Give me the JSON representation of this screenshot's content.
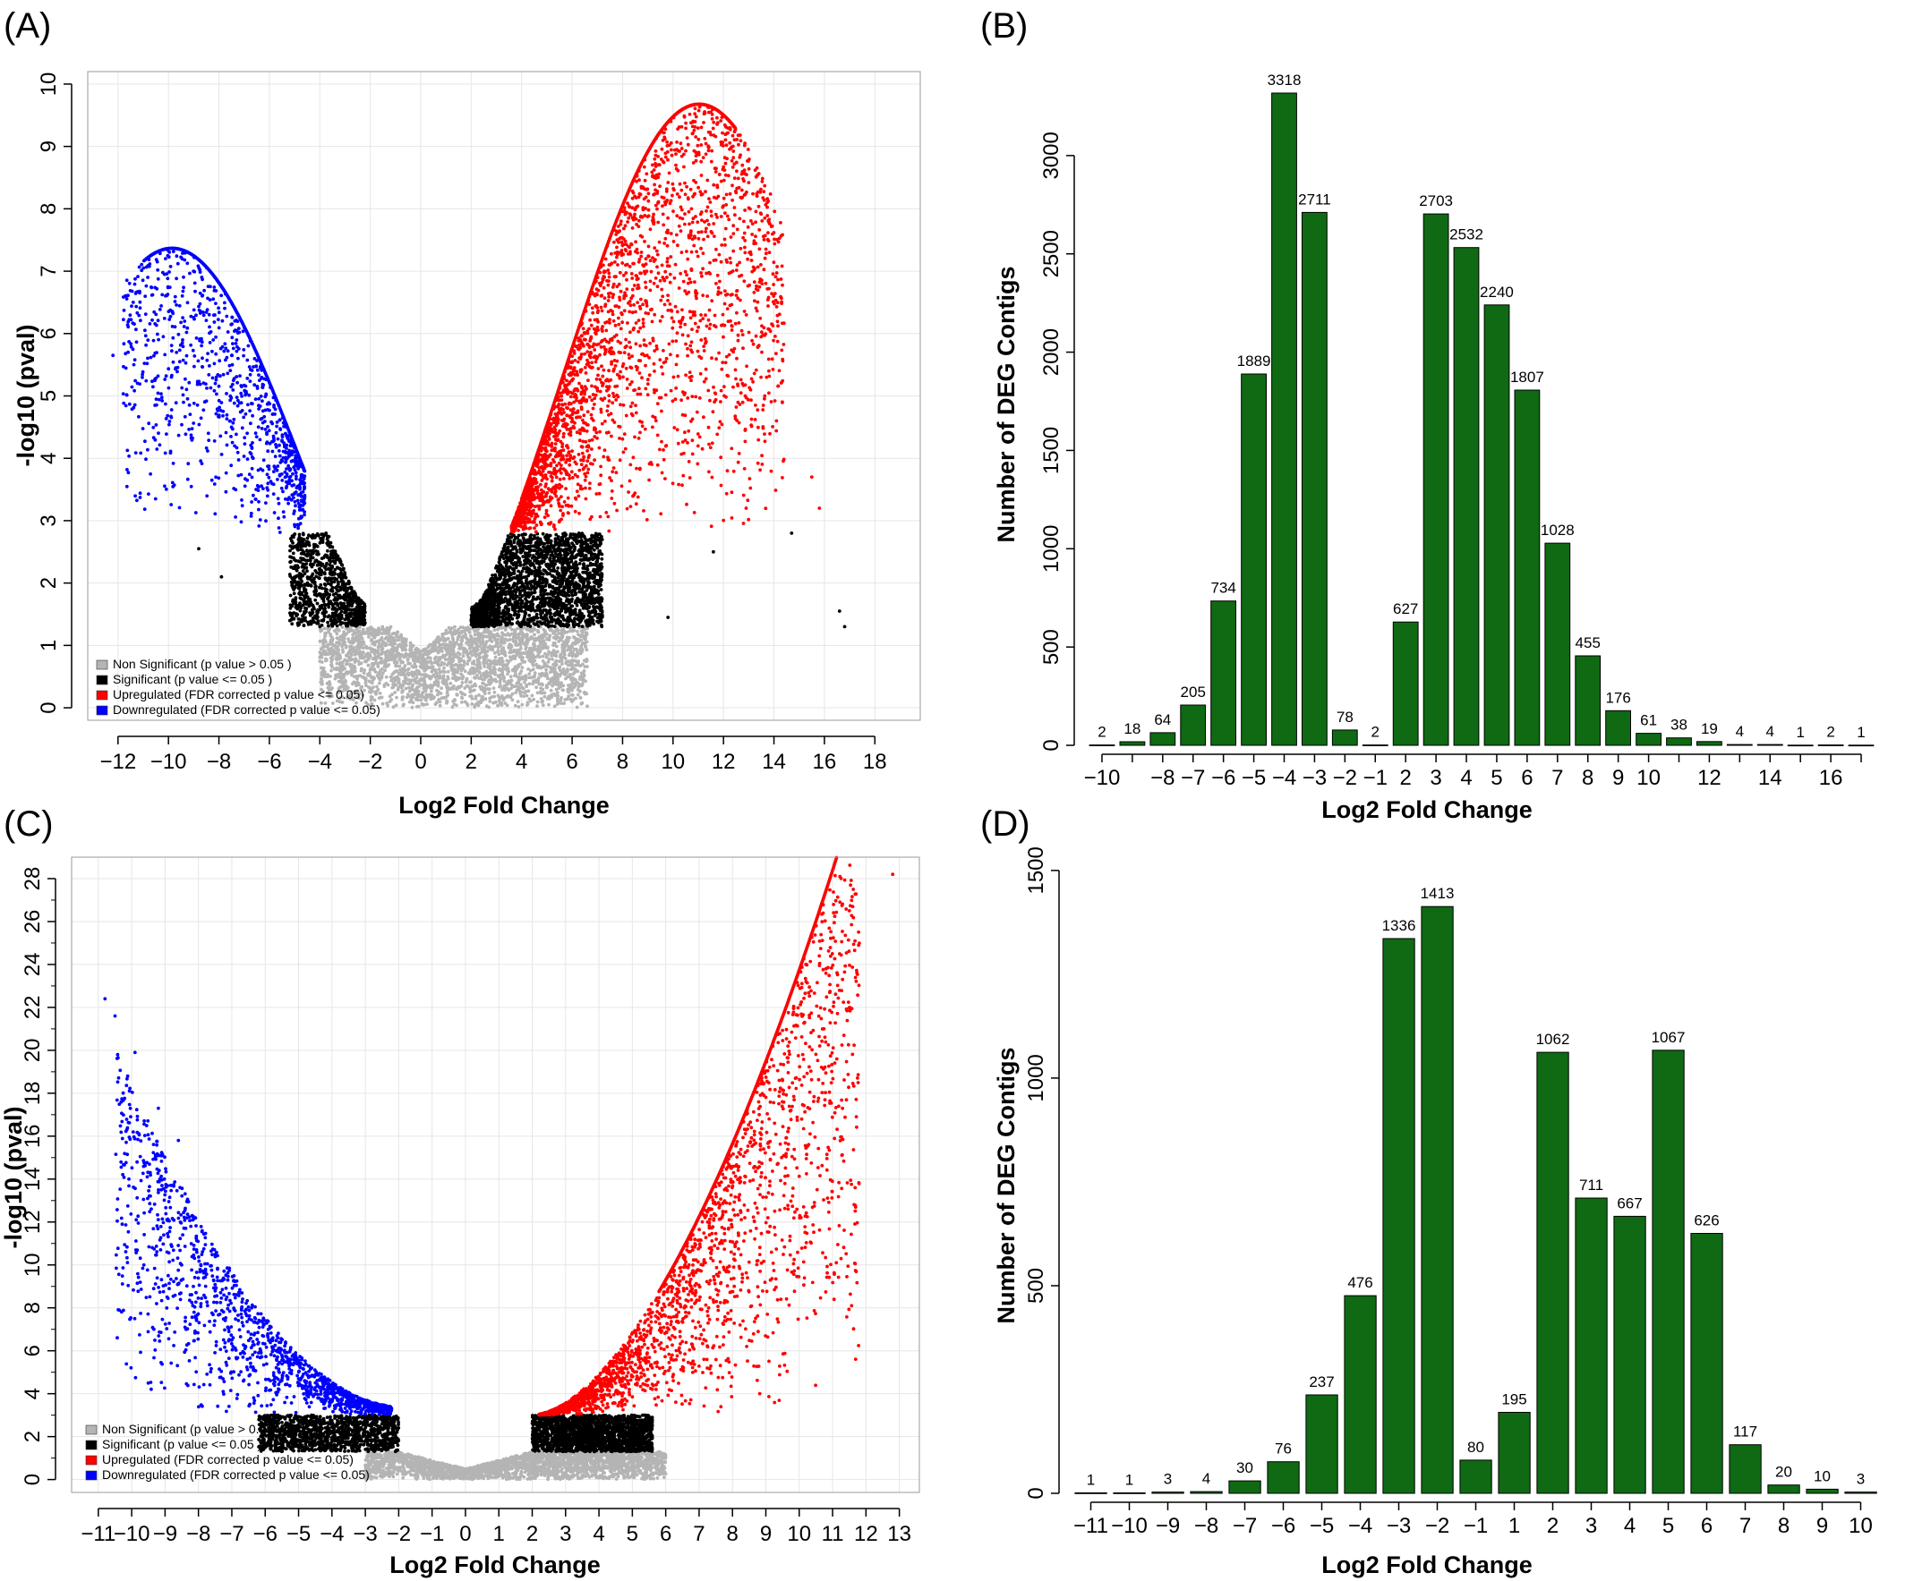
{
  "colors": {
    "non_significant": "#b4b4b4",
    "significant": "#000000",
    "upregulated": "#ff0000",
    "downregulated": "#0000ff",
    "bar_fill": "#0f6a13",
    "bar_stroke": "#000000",
    "grid": "#e6e6e6"
  },
  "chart_data": [
    {
      "panel": "(A)",
      "type": "scatter",
      "title": "",
      "xlabel": "Log2 Fold Change",
      "ylabel": "-log10 (pval)",
      "xlim": [
        -13.2,
        19.8
      ],
      "ylim": [
        -0.2,
        10.2
      ],
      "xticks": [
        -12,
        -10,
        -8,
        -6,
        -4,
        -2,
        0,
        2,
        4,
        6,
        8,
        10,
        12,
        14,
        16,
        18
      ],
      "yticks": [
        0,
        1,
        2,
        3,
        4,
        5,
        6,
        7,
        8,
        9,
        10
      ],
      "grid": true,
      "legend_position": "bottom-left",
      "thresholds": {
        "significant": 1.3,
        "fdr": 2.8
      },
      "series": [
        {
          "name": "Non Significant (p value > 0.05 )",
          "color_key": "non_significant",
          "x_range": [
            -4,
            6.6
          ],
          "y_range": [
            0,
            1.3
          ]
        },
        {
          "name": "Significant (p value <= 0.05 )",
          "color_key": "significant",
          "x_range": [
            -5.2,
            7.2
          ],
          "y_range": [
            1.3,
            2.8
          ]
        },
        {
          "name": "Upregulated (FDR corrected p value <= 0.05)",
          "color_key": "upregulated",
          "x_range": [
            3.5,
            14.6
          ],
          "y_range": [
            2.8,
            9.7
          ],
          "peak": [
            11,
            9.7
          ]
        },
        {
          "name": "Downregulated (FDR corrected p value <= 0.05)",
          "color_key": "downregulated",
          "x_range": [
            -12,
            -4.5
          ],
          "y_range": [
            2.8,
            7.4
          ],
          "peak": [
            -9.8,
            7.4
          ]
        }
      ]
    },
    {
      "panel": "(B)",
      "type": "bar",
      "title": "",
      "xlabel": "Log2 Fold Change",
      "ylabel": "Number of DEG Contigs",
      "ylim": [
        0,
        3450
      ],
      "yticks": [
        0,
        500,
        1000,
        1500,
        2000,
        2500,
        3000
      ],
      "categories": [
        -10,
        -9,
        -8,
        -7,
        -6,
        -5,
        -4,
        -3,
        -2,
        -1,
        2,
        3,
        4,
        5,
        6,
        7,
        8,
        9,
        10,
        11,
        12,
        13,
        14,
        15,
        16,
        17
      ],
      "tick_labels": [
        "-10",
        "",
        "-8",
        "-7",
        "-6",
        "-5",
        "-4",
        "-3",
        "-2",
        "-1",
        "2",
        "3",
        "4",
        "5",
        "6",
        "7",
        "8",
        "9",
        "10",
        "",
        "12",
        "",
        "14",
        "",
        "16",
        ""
      ],
      "values": [
        2,
        18,
        64,
        205,
        734,
        1889,
        3318,
        2711,
        78,
        2,
        627,
        2703,
        2532,
        2240,
        1807,
        1028,
        455,
        176,
        61,
        38,
        19,
        4,
        4,
        1,
        2,
        1
      ]
    },
    {
      "panel": "(C)",
      "type": "scatter",
      "title": "",
      "xlabel": "Log2 Fold Change",
      "ylabel": "-log10 (pval)",
      "xlim": [
        -11.8,
        13.6
      ],
      "ylim": [
        -0.6,
        29
      ],
      "xticks": [
        -11,
        -10,
        -9,
        -8,
        -7,
        -6,
        -5,
        -4,
        -3,
        -2,
        -1,
        0,
        1,
        2,
        3,
        4,
        5,
        6,
        7,
        8,
        9,
        10,
        11,
        12,
        13
      ],
      "yticks": [
        0,
        2,
        4,
        6,
        8,
        10,
        12,
        14,
        16,
        18,
        20,
        22,
        24,
        26,
        28
      ],
      "grid": true,
      "legend_position": "bottom-left",
      "thresholds": {
        "significant": 1.3,
        "fdr": 3
      },
      "series": [
        {
          "name": "Non Significant (p value > 0.05 )",
          "color_key": "non_significant",
          "x_range": [
            -3,
            6
          ],
          "y_range": [
            0,
            1.3
          ]
        },
        {
          "name": "Significant (p value <= 0.05 )",
          "color_key": "significant",
          "x_range": [
            -6.2,
            5.6
          ],
          "y_range": [
            1.3,
            3
          ]
        },
        {
          "name": "Upregulated (FDR corrected p value <= 0.05)",
          "color_key": "upregulated",
          "x_range": [
            2,
            12.8
          ],
          "y_range": [
            3,
            28.2
          ]
        },
        {
          "name": "Downregulated (FDR corrected p value <= 0.05)",
          "color_key": "downregulated",
          "x_range": [
            -10.8,
            -2.2
          ],
          "y_range": [
            3,
            22.4
          ]
        }
      ]
    },
    {
      "panel": "(D)",
      "type": "bar",
      "title": "",
      "xlabel": "Log2 Fold Change",
      "ylabel": "Number of DEG Contigs",
      "ylim": [
        0,
        1560
      ],
      "yticks": [
        0,
        500,
        1000,
        1500
      ],
      "categories": [
        -11,
        -10,
        -9,
        -8,
        -7,
        -6,
        -5,
        -4,
        -3,
        -2,
        -1,
        1,
        2,
        3,
        4,
        5,
        6,
        7,
        8,
        9,
        10
      ],
      "tick_labels": [
        "-11",
        "-10",
        "-9",
        "-8",
        "-7",
        "-6",
        "-5",
        "-4",
        "-3",
        "-2",
        "-1",
        "1",
        "2",
        "3",
        "4",
        "5",
        "6",
        "7",
        "8",
        "9",
        "10"
      ],
      "values": [
        1,
        1,
        3,
        4,
        30,
        76,
        237,
        476,
        1336,
        1413,
        80,
        195,
        1062,
        711,
        667,
        1067,
        626,
        117,
        20,
        10,
        3
      ]
    }
  ]
}
